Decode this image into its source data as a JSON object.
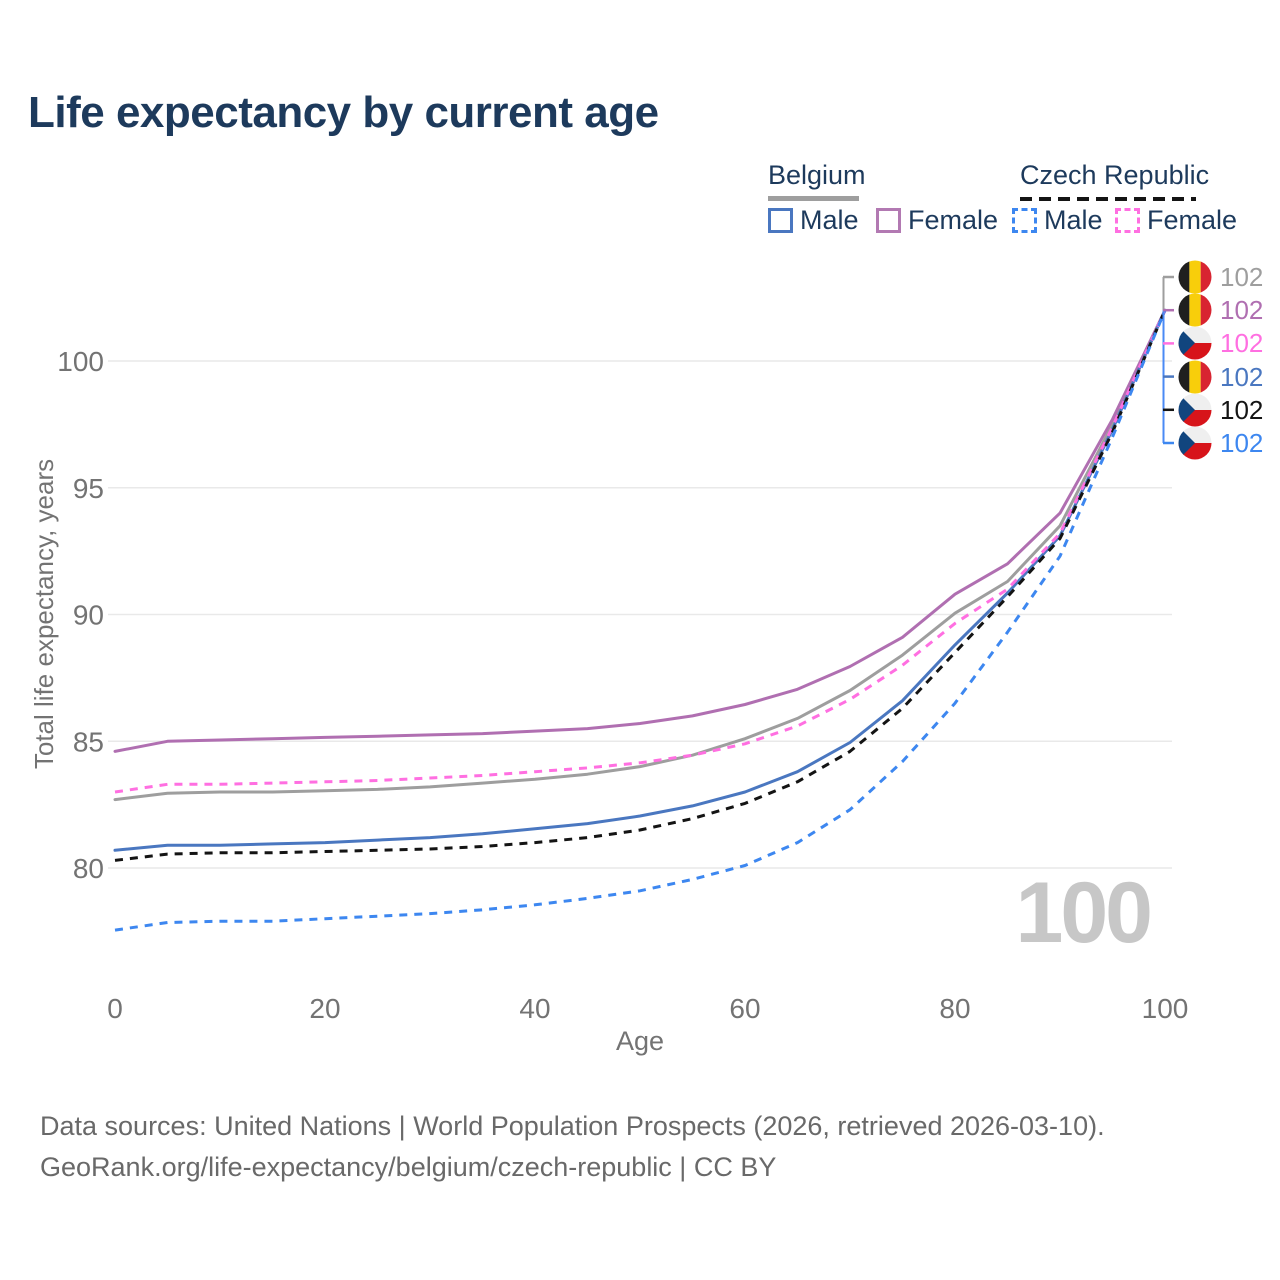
{
  "title": "Life expectancy by current age",
  "legend": {
    "groups": [
      {
        "label": "Belgium",
        "line_style": "solid",
        "line_color": "#9e9e9e",
        "items": [
          {
            "label": "Male",
            "color": "#4a77c0",
            "dashed": false
          },
          {
            "label": "Female",
            "color": "#b279b2",
            "dashed": false
          }
        ]
      },
      {
        "label": "Czech Republic",
        "line_style": "dashed",
        "line_color": "#141414",
        "items": [
          {
            "label": "Male",
            "color": "#3d87f0",
            "dashed": true
          },
          {
            "label": "Female",
            "color": "#ff6fe1",
            "dashed": true
          }
        ]
      }
    ]
  },
  "chart_data": {
    "type": "line",
    "title": "Life expectancy by current age",
    "xlabel": "Age",
    "ylabel": "Total life expectancy, years",
    "xlim": [
      0,
      100
    ],
    "ylim": [
      76.5,
      103
    ],
    "xticks": [
      0,
      20,
      40,
      60,
      80,
      100
    ],
    "yticks": [
      80,
      85,
      90,
      95,
      100
    ],
    "grid": "horizontal-only",
    "legend_position": "top-right",
    "x": [
      0,
      5,
      10,
      15,
      20,
      25,
      30,
      35,
      40,
      45,
      50,
      55,
      60,
      65,
      70,
      75,
      80,
      85,
      90,
      95,
      100
    ],
    "series": [
      {
        "name": "Belgium",
        "country": "Belgium",
        "sex": "Both",
        "color": "#9e9e9e",
        "dash": false,
        "values": [
          82.7,
          82.95,
          83.0,
          83.0,
          83.05,
          83.1,
          83.2,
          83.35,
          83.5,
          83.7,
          84.0,
          84.45,
          85.1,
          85.9,
          87.0,
          88.4,
          90.05,
          91.3,
          93.5,
          97.5,
          102
        ]
      },
      {
        "name": "Belgium Female",
        "country": "Belgium",
        "sex": "Female",
        "color": "#b06fb1",
        "dash": false,
        "values": [
          84.6,
          85.0,
          85.05,
          85.1,
          85.15,
          85.2,
          85.25,
          85.3,
          85.4,
          85.5,
          85.7,
          86.0,
          86.45,
          87.05,
          87.95,
          89.1,
          90.8,
          92.0,
          94.0,
          97.7,
          102
        ]
      },
      {
        "name": "Belgium Male",
        "country": "Belgium",
        "sex": "Male",
        "color": "#4a77c0",
        "dash": false,
        "values": [
          80.7,
          80.9,
          80.9,
          80.95,
          81.0,
          81.1,
          81.2,
          81.35,
          81.55,
          81.75,
          82.05,
          82.45,
          83.0,
          83.8,
          84.95,
          86.6,
          88.8,
          90.85,
          93.1,
          97.3,
          102
        ]
      },
      {
        "name": "Czech Republic Female",
        "country": "Czech Republic",
        "sex": "Female",
        "color": "#ff6fe1",
        "dash": true,
        "values": [
          83.0,
          83.3,
          83.3,
          83.35,
          83.4,
          83.45,
          83.55,
          83.65,
          83.8,
          83.95,
          84.15,
          84.45,
          84.9,
          85.6,
          86.65,
          88.0,
          89.65,
          91.0,
          93.2,
          97.4,
          102
        ]
      },
      {
        "name": "Czech Republic",
        "country": "Czech Republic",
        "sex": "Both",
        "color": "#141414",
        "dash": true,
        "values": [
          80.3,
          80.55,
          80.6,
          80.6,
          80.65,
          80.7,
          80.75,
          80.85,
          81.0,
          81.2,
          81.5,
          81.95,
          82.55,
          83.4,
          84.6,
          86.3,
          88.5,
          90.7,
          93.0,
          97.2,
          102
        ]
      },
      {
        "name": "Czech Republic Male",
        "country": "Czech Republic",
        "sex": "Male",
        "color": "#3d87f0",
        "dash": true,
        "values": [
          77.55,
          77.85,
          77.9,
          77.9,
          78.0,
          78.1,
          78.2,
          78.35,
          78.55,
          78.8,
          79.1,
          79.55,
          80.1,
          81.0,
          82.3,
          84.2,
          86.5,
          89.3,
          92.3,
          97.0,
          102
        ]
      }
    ],
    "end_labels": [
      {
        "series": "Belgium",
        "flag": "belgium",
        "value": "102",
        "color": "#9e9e9e"
      },
      {
        "series": "Belgium Female",
        "flag": "belgium",
        "value": "102",
        "color": "#b06fb1"
      },
      {
        "series": "Czech Republic Female",
        "flag": "czech-republic",
        "value": "102",
        "color": "#ff6fe1"
      },
      {
        "series": "Belgium Male",
        "flag": "belgium",
        "value": "102",
        "color": "#4a77c0"
      },
      {
        "series": "Czech Republic",
        "flag": "czech-republic",
        "value": "102",
        "color": "#141414"
      },
      {
        "series": "Czech Republic Male",
        "flag": "czech-republic",
        "value": "102",
        "color": "#3d87f0"
      }
    ]
  },
  "annotations": {
    "age_counter": "100"
  },
  "footer": {
    "line1": "Data sources: United Nations | World Population Prospects (2026, retrieved 2026-03-10).",
    "line2": "GeoRank.org/life-expectancy/belgium/czech-republic | CC BY"
  }
}
